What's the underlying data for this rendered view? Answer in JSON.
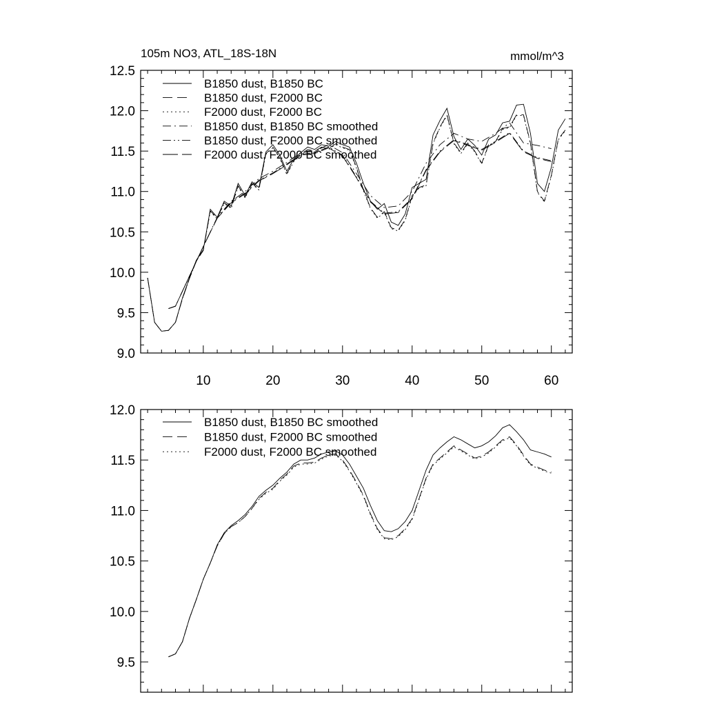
{
  "chart_data": [
    {
      "type": "line",
      "title": "105m NO3, ATL_18S-18N",
      "units": "mmol/m^3",
      "xlim": [
        1,
        63
      ],
      "ylim": [
        9.0,
        12.5
      ],
      "xticks": [
        10,
        20,
        30,
        40,
        50,
        60
      ],
      "yticks": [
        9.0,
        9.5,
        10.0,
        10.5,
        11.0,
        11.5,
        12.0,
        12.5
      ],
      "xtick_labels": [
        "10",
        "20",
        "30",
        "40",
        "50",
        "60"
      ],
      "ytick_labels": [
        "9.0",
        "9.5",
        "10.0",
        "10.5",
        "11.0",
        "11.5",
        "12.0",
        "12.5"
      ],
      "legend_position": "top-left",
      "series": [
        {
          "name": "B1850 dust, B1850 BC",
          "style": "solid",
          "x": [
            2,
            3,
            4,
            5,
            6,
            7,
            8,
            9,
            10,
            11,
            12,
            13,
            14,
            15,
            16,
            17,
            18,
            19,
            20,
            21,
            22,
            23,
            24,
            25,
            26,
            27,
            28,
            29,
            30,
            31,
            32,
            33,
            34,
            35,
            36,
            37,
            38,
            39,
            40,
            41,
            42,
            43,
            44,
            45,
            46,
            47,
            48,
            49,
            50,
            51,
            52,
            53,
            54,
            55,
            56,
            57,
            58,
            59,
            60,
            61,
            62
          ],
          "values": [
            9.93,
            9.38,
            9.27,
            9.28,
            9.38,
            9.68,
            9.93,
            10.15,
            10.28,
            10.78,
            10.68,
            10.88,
            10.82,
            11.1,
            10.95,
            11.12,
            11.05,
            11.49,
            11.58,
            11.45,
            11.25,
            11.4,
            11.48,
            11.55,
            11.52,
            11.58,
            11.56,
            11.62,
            11.58,
            11.55,
            11.35,
            11.1,
            10.88,
            10.78,
            10.85,
            10.62,
            10.58,
            10.72,
            11.05,
            11.1,
            11.15,
            11.7,
            11.88,
            12.03,
            11.68,
            11.52,
            11.65,
            11.57,
            11.45,
            11.65,
            11.7,
            11.85,
            11.87,
            12.07,
            12.08,
            11.72,
            11.1,
            11.0,
            11.3,
            11.76,
            11.9
          ]
        },
        {
          "name": "B1850 dust, F2000 BC",
          "style": "dash",
          "x": [
            2,
            3,
            4,
            5,
            6,
            7,
            8,
            9,
            10,
            11,
            12,
            13,
            14,
            15,
            16,
            17,
            18,
            19,
            20,
            21,
            22,
            23,
            24,
            25,
            26,
            27,
            28,
            29,
            30,
            31,
            32,
            33,
            34,
            35,
            36,
            37,
            38,
            39,
            40,
            41,
            42,
            43,
            44,
            45,
            46,
            47,
            48,
            49,
            50,
            51,
            52,
            53,
            54,
            55,
            56,
            57,
            58,
            59,
            60,
            61,
            62
          ],
          "values": [
            9.93,
            9.38,
            9.27,
            9.28,
            9.38,
            9.67,
            9.92,
            10.14,
            10.27,
            10.76,
            10.67,
            10.86,
            10.8,
            11.07,
            10.93,
            11.1,
            11.03,
            11.47,
            11.55,
            11.42,
            11.22,
            11.38,
            11.46,
            11.52,
            11.5,
            11.55,
            11.53,
            11.59,
            11.55,
            11.52,
            11.3,
            11.02,
            10.8,
            10.68,
            10.75,
            10.55,
            10.52,
            10.65,
            10.95,
            11.05,
            11.08,
            11.6,
            11.8,
            11.95,
            11.6,
            11.48,
            11.6,
            11.5,
            11.35,
            11.58,
            11.62,
            11.78,
            11.8,
            11.95,
            11.95,
            11.6,
            11.0,
            10.88,
            11.2,
            11.65,
            11.76
          ]
        },
        {
          "name": "F2000 dust, F2000 BC",
          "style": "dot",
          "x": [
            2,
            3,
            4,
            5,
            6,
            7,
            8,
            9,
            10,
            11,
            12,
            13,
            14,
            15,
            16,
            17,
            18,
            19,
            20,
            21,
            22,
            23,
            24,
            25,
            26,
            27,
            28,
            29,
            30,
            31,
            32,
            33,
            34,
            35,
            36,
            37,
            38,
            39,
            40,
            41,
            42,
            43,
            44,
            45,
            46,
            47,
            48,
            49,
            50,
            51,
            52,
            53,
            54,
            55,
            56,
            57,
            58,
            59,
            60,
            61,
            62
          ],
          "values": [
            9.93,
            9.38,
            9.27,
            9.28,
            9.38,
            9.67,
            9.92,
            10.14,
            10.27,
            10.75,
            10.66,
            10.85,
            10.79,
            11.06,
            10.92,
            11.09,
            11.02,
            11.46,
            11.54,
            11.41,
            11.21,
            11.37,
            11.45,
            11.51,
            11.49,
            11.54,
            11.52,
            11.58,
            11.54,
            11.51,
            11.29,
            11.01,
            10.79,
            10.67,
            10.74,
            10.54,
            10.51,
            10.64,
            10.94,
            11.04,
            11.07,
            11.59,
            11.79,
            11.94,
            11.59,
            11.47,
            11.59,
            11.49,
            11.34,
            11.57,
            11.61,
            11.77,
            11.79,
            11.94,
            11.94,
            11.59,
            10.99,
            10.87,
            11.19,
            11.64,
            11.75
          ]
        },
        {
          "name": "B1850 dust, B1850 BC smoothed",
          "style": "dashdot",
          "x": [
            5,
            6,
            8,
            10,
            12,
            14,
            16,
            18,
            20,
            22,
            24,
            26,
            28,
            30,
            32,
            34,
            36,
            38,
            40,
            42,
            44,
            46,
            48,
            50,
            52,
            54,
            56,
            58,
            60
          ],
          "values": [
            9.55,
            9.58,
            9.95,
            10.32,
            10.68,
            10.88,
            11.0,
            11.16,
            11.25,
            11.36,
            11.48,
            11.5,
            11.58,
            11.48,
            11.22,
            10.95,
            10.8,
            10.82,
            11.0,
            11.35,
            11.58,
            11.72,
            11.65,
            11.62,
            11.72,
            11.85,
            11.6,
            11.57,
            11.53
          ]
        },
        {
          "name": "B1850 dust, F2000 BC smoothed",
          "style": "dashdotdot",
          "x": [
            5,
            6,
            8,
            10,
            12,
            14,
            16,
            18,
            20,
            22,
            24,
            26,
            28,
            30,
            32,
            34,
            36,
            38,
            40,
            42,
            44,
            46,
            48,
            50,
            52,
            54,
            56,
            58,
            60
          ],
          "values": [
            9.55,
            9.58,
            9.95,
            10.32,
            10.67,
            10.87,
            10.98,
            11.14,
            11.23,
            11.34,
            11.46,
            11.48,
            11.55,
            11.45,
            11.18,
            10.88,
            10.73,
            10.75,
            10.92,
            11.27,
            11.5,
            11.64,
            11.58,
            11.52,
            11.62,
            11.73,
            11.5,
            11.42,
            11.38
          ]
        },
        {
          "name": "F2000 dust, F2000 BC smoothed",
          "style": "longdash",
          "x": [
            5,
            6,
            8,
            10,
            12,
            14,
            16,
            18,
            20,
            22,
            24,
            26,
            28,
            30,
            32,
            34,
            36,
            38,
            40,
            42,
            44,
            46,
            48,
            50,
            52,
            54,
            56,
            58,
            60
          ],
          "values": [
            9.55,
            9.58,
            9.95,
            10.32,
            10.67,
            10.86,
            10.97,
            11.13,
            11.22,
            11.33,
            11.45,
            11.47,
            11.54,
            11.44,
            11.17,
            10.87,
            10.72,
            10.74,
            10.91,
            11.26,
            11.49,
            11.63,
            11.57,
            11.51,
            11.61,
            11.72,
            11.49,
            11.41,
            11.37
          ]
        }
      ]
    },
    {
      "type": "line",
      "xlim": [
        1,
        63
      ],
      "ylim": [
        9.2,
        12.0
      ],
      "xticks": [
        10,
        20,
        30,
        40,
        50,
        60
      ],
      "yticks": [
        9.5,
        10.0,
        10.5,
        11.0,
        11.5,
        12.0
      ],
      "ytick_labels": [
        "9.5",
        "10.0",
        "10.5",
        "11.0",
        "11.5",
        "12.0"
      ],
      "legend_position": "top-left",
      "series": [
        {
          "name": "B1850 dust, B1850 BC smoothed",
          "style": "solid",
          "x": [
            5,
            6,
            7,
            8,
            9,
            10,
            11,
            12,
            13,
            14,
            15,
            16,
            17,
            18,
            19,
            20,
            21,
            22,
            23,
            24,
            25,
            26,
            27,
            28,
            29,
            30,
            31,
            32,
            33,
            34,
            35,
            36,
            37,
            38,
            39,
            40,
            41,
            42,
            43,
            44,
            45,
            46,
            47,
            48,
            49,
            50,
            51,
            52,
            53,
            54,
            55,
            56,
            57,
            58,
            59,
            60
          ],
          "values": [
            9.55,
            9.58,
            9.7,
            9.93,
            10.12,
            10.32,
            10.48,
            10.66,
            10.78,
            10.85,
            10.9,
            10.96,
            11.04,
            11.14,
            11.2,
            11.25,
            11.32,
            11.38,
            11.46,
            11.5,
            11.5,
            11.52,
            11.56,
            11.58,
            11.59,
            11.55,
            11.46,
            11.34,
            11.22,
            11.05,
            10.9,
            10.8,
            10.79,
            10.82,
            10.89,
            11.0,
            11.2,
            11.4,
            11.55,
            11.62,
            11.68,
            11.73,
            11.7,
            11.66,
            11.62,
            11.64,
            11.68,
            11.74,
            11.82,
            11.85,
            11.78,
            11.7,
            11.6,
            11.58,
            11.56,
            11.53
          ]
        },
        {
          "name": "B1850 dust, F2000 BC smoothed",
          "style": "dash",
          "x": [
            5,
            6,
            7,
            8,
            9,
            10,
            11,
            12,
            13,
            14,
            15,
            16,
            17,
            18,
            19,
            20,
            21,
            22,
            23,
            24,
            25,
            26,
            27,
            28,
            29,
            30,
            31,
            32,
            33,
            34,
            35,
            36,
            37,
            38,
            39,
            40,
            41,
            42,
            43,
            44,
            45,
            46,
            47,
            48,
            49,
            50,
            51,
            52,
            53,
            54,
            55,
            56,
            57,
            58,
            59,
            60
          ],
          "values": [
            9.55,
            9.58,
            9.7,
            9.93,
            10.12,
            10.32,
            10.48,
            10.65,
            10.77,
            10.84,
            10.88,
            10.94,
            11.02,
            11.12,
            11.18,
            11.22,
            11.3,
            11.36,
            11.44,
            11.47,
            11.47,
            11.48,
            11.52,
            11.55,
            11.56,
            11.5,
            11.4,
            11.28,
            11.15,
            10.97,
            10.82,
            10.73,
            10.72,
            10.75,
            10.82,
            10.92,
            11.12,
            11.32,
            11.46,
            11.52,
            11.58,
            11.64,
            11.6,
            11.56,
            11.52,
            11.54,
            11.58,
            11.64,
            11.7,
            11.73,
            11.65,
            11.55,
            11.46,
            11.43,
            11.4,
            11.38
          ]
        },
        {
          "name": "F2000 dust, F2000 BC smoothed",
          "style": "dot",
          "x": [
            5,
            6,
            7,
            8,
            9,
            10,
            11,
            12,
            13,
            14,
            15,
            16,
            17,
            18,
            19,
            20,
            21,
            22,
            23,
            24,
            25,
            26,
            27,
            28,
            29,
            30,
            31,
            32,
            33,
            34,
            35,
            36,
            37,
            38,
            39,
            40,
            41,
            42,
            43,
            44,
            45,
            46,
            47,
            48,
            49,
            50,
            51,
            52,
            53,
            54,
            55,
            56,
            57,
            58,
            59,
            60
          ],
          "values": [
            9.55,
            9.58,
            9.7,
            9.93,
            10.12,
            10.32,
            10.48,
            10.65,
            10.77,
            10.84,
            10.88,
            10.94,
            11.02,
            11.11,
            11.17,
            11.21,
            11.29,
            11.35,
            11.43,
            11.46,
            11.46,
            11.47,
            11.51,
            11.54,
            11.55,
            11.49,
            11.39,
            11.27,
            11.14,
            10.96,
            10.81,
            10.72,
            10.71,
            10.74,
            10.81,
            10.91,
            11.11,
            11.31,
            11.45,
            11.51,
            11.57,
            11.63,
            11.59,
            11.55,
            11.51,
            11.53,
            11.57,
            11.63,
            11.69,
            11.72,
            11.64,
            11.54,
            11.45,
            11.42,
            11.39,
            11.37
          ]
        }
      ]
    }
  ]
}
